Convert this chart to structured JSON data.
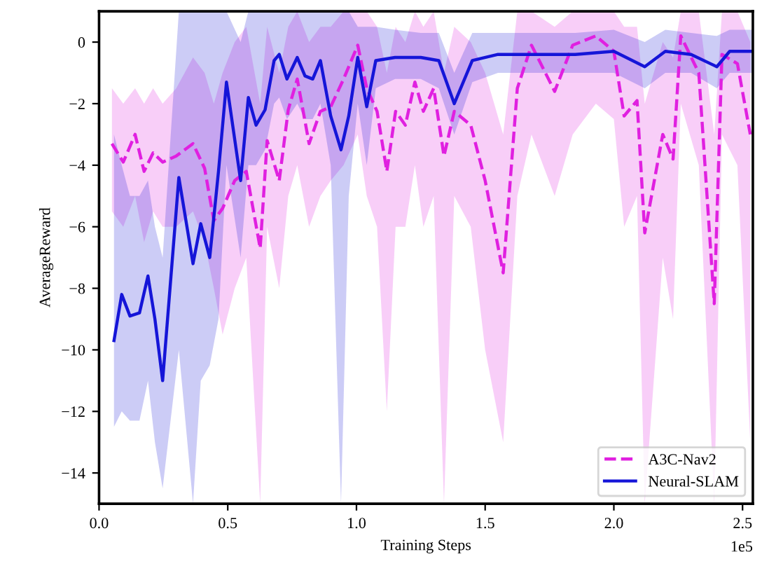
{
  "chart_data": {
    "type": "line",
    "xlabel": "Training Steps",
    "ylabel": "AverageReward",
    "xlim": [
      0,
      2.54
    ],
    "ylim": [
      -15,
      1
    ],
    "xticks": [
      {
        "value": 0,
        "label": "0.0"
      },
      {
        "value": 0.5,
        "label": "0.5"
      },
      {
        "value": 1,
        "label": "1.0"
      },
      {
        "value": 1.5,
        "label": "1.5"
      },
      {
        "value": 2,
        "label": "2.0"
      },
      {
        "value": 2.5,
        "label": "2.5"
      }
    ],
    "yticks": [
      0,
      {
        "value": -2,
        "label": "−2"
      },
      {
        "value": -4,
        "label": "−4"
      },
      {
        "value": -6,
        "label": "−6"
      },
      {
        "value": -8,
        "label": "−8"
      },
      {
        "value": -10,
        "label": "−10"
      },
      {
        "value": -12,
        "label": "−12"
      },
      {
        "value": -14,
        "label": "−14"
      }
    ],
    "annotations": [
      "1e5"
    ],
    "legend": "bottom right",
    "grid": false,
    "marker": "none",
    "series": [
      {
        "name": "A3C-Nav2",
        "color": "#e020e0",
        "line_style": "dashed",
        "x": [
          0.05,
          0.094,
          0.14,
          0.175,
          0.21,
          0.247,
          0.3,
          0.365,
          0.41,
          0.446,
          0.48,
          0.527,
          0.572,
          0.626,
          0.653,
          0.7,
          0.735,
          0.77,
          0.816,
          0.86,
          0.9,
          0.95,
          1.005,
          1.04,
          1.08,
          1.118,
          1.152,
          1.19,
          1.227,
          1.26,
          1.3,
          1.34,
          1.38,
          1.444,
          1.5,
          1.57,
          1.625,
          1.68,
          1.77,
          1.84,
          1.93,
          2.0,
          2.04,
          2.09,
          2.12,
          2.19,
          2.23,
          2.26,
          2.33,
          2.39,
          2.42,
          2.48,
          2.53
        ],
        "values": [
          -3.3,
          -3.9,
          -3.0,
          -4.2,
          -3.6,
          -3.9,
          -3.7,
          -3.3,
          -4.1,
          -5.8,
          -5.4,
          -4.5,
          -4.2,
          -6.7,
          -3.2,
          -4.5,
          -2.2,
          -1.2,
          -3.3,
          -2.25,
          -2.1,
          -1.2,
          -0.1,
          -1.5,
          -2.25,
          -4.2,
          -2.25,
          -2.7,
          -1.3,
          -2.25,
          -1.5,
          -3.7,
          -2.25,
          -2.7,
          -4.5,
          -7.5,
          -1.5,
          -0.1,
          -1.6,
          -0.1,
          0.2,
          -0.3,
          -2.4,
          -1.9,
          -6.2,
          -3.0,
          -3.8,
          0.2,
          -1.0,
          -8.5,
          -0.4,
          -0.7,
          -3.0
        ],
        "lower": [
          -5.5,
          -6,
          -5,
          -6.5,
          -5.5,
          -6,
          -6,
          -5.5,
          -6.5,
          -8,
          -9.5,
          -8,
          -7,
          -15,
          -6,
          -8,
          -5,
          -4,
          -6,
          -5,
          -4.5,
          -4,
          -3,
          -5,
          -6,
          -12,
          -6,
          -6,
          -4,
          -6,
          -5,
          -15,
          -5,
          -6,
          -10,
          -13,
          -5,
          -3,
          -5,
          -3,
          -2,
          -2.5,
          -6,
          -5,
          -15,
          -7,
          -9,
          -2,
          -4,
          -15,
          -3,
          -4,
          -13
        ],
        "upper": [
          -1.5,
          -2,
          -1.5,
          -2,
          -1.5,
          -2,
          -1.5,
          -0.5,
          -1,
          -2,
          -1,
          0,
          0.5,
          -2,
          0.5,
          -1,
          0.5,
          1,
          0,
          0.5,
          0.5,
          1,
          1,
          1,
          0.5,
          -1,
          0.5,
          0,
          1,
          0.5,
          1,
          -1,
          0.5,
          0,
          -1,
          -3,
          1,
          1,
          0.5,
          1,
          1,
          1,
          0.5,
          0.5,
          -2,
          0,
          -0.5,
          1,
          1,
          -3,
          1,
          1,
          0
        ]
      },
      {
        "name": "Neural-SLAM",
        "color": "#1515d8",
        "line_style": "solid",
        "x": [
          0.058,
          0.088,
          0.12,
          0.157,
          0.19,
          0.217,
          0.247,
          0.31,
          0.365,
          0.395,
          0.43,
          0.464,
          0.495,
          0.55,
          0.58,
          0.61,
          0.645,
          0.68,
          0.7,
          0.73,
          0.77,
          0.8,
          0.83,
          0.86,
          0.9,
          0.94,
          0.97,
          1.005,
          1.04,
          1.075,
          1.15,
          1.25,
          1.32,
          1.38,
          1.45,
          1.55,
          1.7,
          1.85,
          2.0,
          2.12,
          2.2,
          2.3,
          2.4,
          2.45,
          2.54
        ],
        "values": [
          -9.7,
          -8.2,
          -8.9,
          -8.8,
          -7.6,
          -9.0,
          -11.0,
          -4.4,
          -7.2,
          -5.9,
          -7.0,
          -4.2,
          -1.3,
          -4.5,
          -1.8,
          -2.7,
          -2.2,
          -0.6,
          -0.4,
          -1.2,
          -0.5,
          -1.1,
          -1.2,
          -0.6,
          -2.4,
          -3.5,
          -2.4,
          -0.5,
          -2.1,
          -0.6,
          -0.5,
          -0.5,
          -0.6,
          -2.0,
          -0.6,
          -0.4,
          -0.4,
          -0.4,
          -0.3,
          -0.8,
          -0.3,
          -0.4,
          -0.8,
          -0.3,
          -0.3
        ],
        "lower": [
          -12.5,
          -12,
          -12.3,
          -12.3,
          -11,
          -13,
          -14.5,
          -10,
          -15,
          -11,
          -10.5,
          -9,
          -4,
          -7,
          -4,
          -4,
          -3.5,
          -2,
          -1.8,
          -2.5,
          -2,
          -2.5,
          -2.5,
          -2,
          -4,
          -15,
          -5,
          -2,
          -4,
          -1.5,
          -1.2,
          -1.2,
          -1.5,
          -3,
          -1.3,
          -1,
          -1,
          -1,
          -1,
          -1.5,
          -1,
          -1,
          -1.5,
          -1,
          -1
        ],
        "upper": [
          -3,
          -4,
          -5,
          -5,
          -4.5,
          -6,
          -7,
          1,
          1,
          1,
          1,
          1,
          1,
          0,
          1,
          1,
          1,
          1,
          1,
          1,
          1,
          1,
          1,
          1,
          1,
          1,
          1,
          0.5,
          0.5,
          0.5,
          0.4,
          0.3,
          0.3,
          -1,
          0.3,
          0.3,
          0.3,
          0.3,
          0.4,
          0,
          0.4,
          0.3,
          0.2,
          0.4,
          0.4
        ]
      }
    ]
  }
}
